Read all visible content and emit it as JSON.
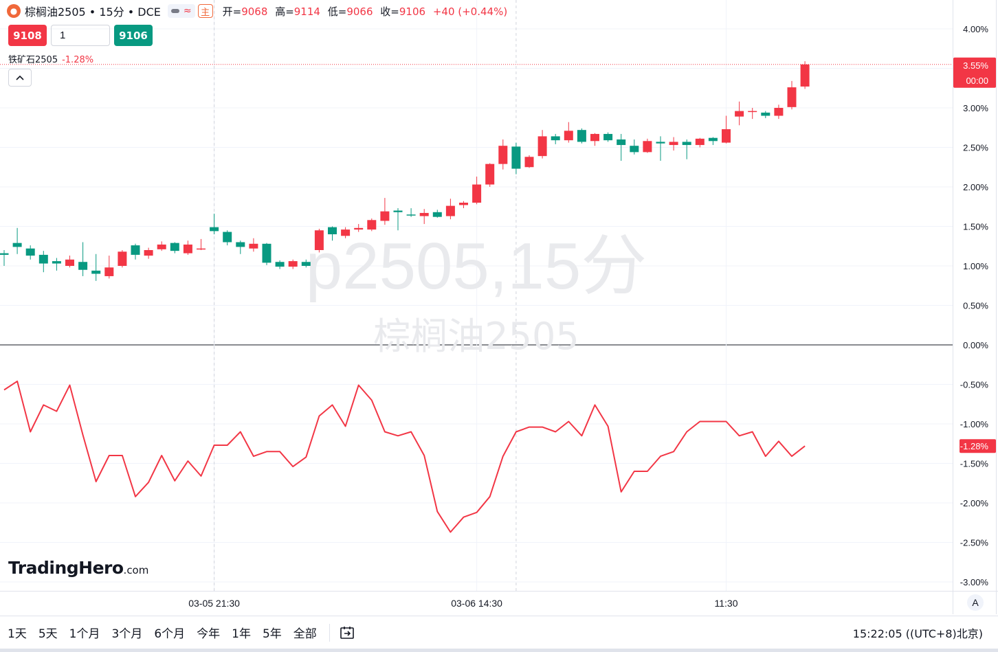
{
  "header": {
    "logo_icon": "oil-drop-icon",
    "symbol_title": "棕榈油2505 • 15分 • DCE",
    "wave_glyph": "≈",
    "main_badge": "主",
    "open_label": "开=",
    "open": "9068",
    "high_label": "高=",
    "high": "9114",
    "low_label": "低=",
    "low": "9066",
    "close_label": "收=",
    "close": "9106",
    "change": "+40 (+0.44%)"
  },
  "trade": {
    "sell_price": "9108",
    "quantity": "1",
    "buy_price": "9106"
  },
  "compare": {
    "symbol": "铁矿石2505",
    "change": "-1.28%"
  },
  "watermark": {
    "line1": "p2505,15分",
    "line2": "棕榈油2505"
  },
  "brand": {
    "name": "TradingHero",
    "suffix": ".com"
  },
  "axis_button": "A",
  "bottom_bar": {
    "ranges": [
      "1天",
      "5天",
      "1个月",
      "3个月",
      "6个月",
      "今年",
      "1年",
      "5年",
      "全部"
    ],
    "calendar_icon": "calendar-goto-icon",
    "time": "15:22:05 ((UTC+8)北京)"
  },
  "colors": {
    "up": "#f23645",
    "down": "#089981",
    "compare_line": "#f23645",
    "grid": "#f0f3fa"
  },
  "chart_data": {
    "type": "candlestick",
    "y_unit": "%",
    "ylim": [
      -3.1,
      4.2
    ],
    "y_ticks": [
      "4.00%",
      "3.50%",
      "3.00%",
      "2.50%",
      "2.00%",
      "1.50%",
      "1.00%",
      "0.50%",
      "0.00%",
      "-0.50%",
      "-1.00%",
      "-1.50%",
      "-2.00%",
      "-2.50%",
      "-3.00%"
    ],
    "y_tick_values": [
      4.0,
      3.5,
      3.0,
      2.5,
      2.0,
      1.5,
      1.0,
      0.5,
      0.0,
      -0.5,
      -1.0,
      -1.5,
      -2.0,
      -2.5,
      -3.0
    ],
    "x_ticks": [
      {
        "index": 16,
        "label": "03-05 21:30"
      },
      {
        "index": 36,
        "label": "03-06 14:30"
      },
      {
        "index": 55,
        "label": "11:30"
      }
    ],
    "session_breaks": [
      16,
      39
    ],
    "last_price_label": "3.55%",
    "last_price_value": 3.55,
    "countdown_label": "00:00",
    "compare_last_label": "-1.28%",
    "compare_last_value": -1.28,
    "grid": true,
    "series": [
      {
        "name": "棕榈油2505",
        "candles": [
          [
            1.16,
            1.14,
            1.2,
            1.0
          ],
          [
            1.29,
            1.24,
            1.48,
            1.15
          ],
          [
            1.22,
            1.13,
            1.26,
            1.08
          ],
          [
            1.14,
            1.03,
            1.19,
            0.92
          ],
          [
            1.06,
            1.03,
            1.1,
            0.94
          ],
          [
            1.0,
            1.08,
            1.13,
            0.98
          ],
          [
            1.05,
            0.95,
            1.3,
            0.87
          ],
          [
            0.94,
            0.9,
            1.15,
            0.81
          ],
          [
            0.87,
            0.98,
            1.13,
            0.84
          ],
          [
            1.0,
            1.18,
            1.2,
            0.98
          ],
          [
            1.26,
            1.14,
            1.28,
            1.08
          ],
          [
            1.13,
            1.2,
            1.23,
            1.09
          ],
          [
            1.21,
            1.27,
            1.31,
            1.19
          ],
          [
            1.29,
            1.19,
            1.3,
            1.16
          ],
          [
            1.16,
            1.27,
            1.32,
            1.14
          ],
          [
            1.22,
            1.22,
            1.34,
            1.2
          ],
          [
            1.49,
            1.44,
            1.66,
            1.4
          ],
          [
            1.43,
            1.3,
            1.45,
            1.26
          ],
          [
            1.3,
            1.24,
            1.32,
            1.15
          ],
          [
            1.22,
            1.28,
            1.35,
            1.18
          ],
          [
            1.28,
            1.04,
            1.29,
            1.01
          ],
          [
            1.05,
            0.99,
            1.07,
            0.96
          ],
          [
            0.99,
            1.06,
            1.08,
            0.96
          ],
          [
            1.05,
            1.0,
            1.08,
            0.98
          ],
          [
            1.2,
            1.45,
            1.47,
            1.17
          ],
          [
            1.49,
            1.4,
            1.5,
            1.32
          ],
          [
            1.38,
            1.46,
            1.49,
            1.35
          ],
          [
            1.46,
            1.48,
            1.53,
            1.43
          ],
          [
            1.46,
            1.58,
            1.6,
            1.44
          ],
          [
            1.57,
            1.69,
            1.86,
            1.52
          ],
          [
            1.7,
            1.68,
            1.73,
            1.45
          ],
          [
            1.65,
            1.64,
            1.73,
            1.62
          ],
          [
            1.63,
            1.67,
            1.72,
            1.53
          ],
          [
            1.68,
            1.62,
            1.71,
            1.61
          ],
          [
            1.63,
            1.76,
            1.85,
            1.59
          ],
          [
            1.77,
            1.8,
            1.82,
            1.73
          ],
          [
            1.8,
            2.03,
            2.13,
            1.78
          ],
          [
            2.03,
            2.29,
            2.3,
            2.0
          ],
          [
            2.29,
            2.52,
            2.6,
            2.22
          ],
          [
            2.51,
            2.23,
            2.56,
            2.16
          ],
          [
            2.25,
            2.38,
            2.4,
            2.24
          ],
          [
            2.39,
            2.64,
            2.72,
            2.36
          ],
          [
            2.64,
            2.59,
            2.67,
            2.54
          ],
          [
            2.59,
            2.71,
            2.82,
            2.56
          ],
          [
            2.72,
            2.57,
            2.74,
            2.55
          ],
          [
            2.58,
            2.67,
            2.68,
            2.52
          ],
          [
            2.67,
            2.59,
            2.69,
            2.57
          ],
          [
            2.6,
            2.53,
            2.67,
            2.33
          ],
          [
            2.52,
            2.44,
            2.6,
            2.41
          ],
          [
            2.44,
            2.58,
            2.61,
            2.43
          ],
          [
            2.57,
            2.55,
            2.64,
            2.33
          ],
          [
            2.53,
            2.57,
            2.63,
            2.46
          ],
          [
            2.57,
            2.53,
            2.6,
            2.35
          ],
          [
            2.53,
            2.61,
            2.62,
            2.5
          ],
          [
            2.62,
            2.58,
            2.63,
            2.53
          ],
          [
            2.56,
            2.73,
            2.9,
            2.55
          ],
          [
            2.89,
            2.96,
            3.08,
            2.78
          ],
          [
            2.96,
            2.96,
            3.0,
            2.86
          ],
          [
            2.94,
            2.9,
            2.96,
            2.87
          ],
          [
            2.9,
            3.0,
            3.04,
            2.86
          ],
          [
            3.01,
            3.26,
            3.34,
            2.98
          ],
          [
            3.27,
            3.55,
            3.59,
            3.24
          ]
        ]
      },
      {
        "name": "铁矿石2505",
        "values": [
          -0.57,
          -0.46,
          -1.1,
          -0.76,
          -0.84,
          -0.51,
          -1.14,
          -1.73,
          -1.4,
          -1.4,
          -1.92,
          -1.74,
          -1.4,
          -1.72,
          -1.47,
          -1.66,
          -1.27,
          -1.27,
          -1.1,
          -1.41,
          -1.35,
          -1.35,
          -1.54,
          -1.42,
          -0.9,
          -0.76,
          -1.03,
          -0.51,
          -0.7,
          -1.1,
          -1.15,
          -1.1,
          -1.4,
          -2.11,
          -2.37,
          -2.18,
          -2.12,
          -1.92,
          -1.41,
          -1.1,
          -1.04,
          -1.04,
          -1.1,
          -0.97,
          -1.15,
          -0.76,
          -1.03,
          -1.86,
          -1.6,
          -1.6,
          -1.41,
          -1.35,
          -1.1,
          -0.97,
          -0.97,
          -0.97,
          -1.15,
          -1.1,
          -1.41,
          -1.22,
          -1.41,
          -1.28
        ]
      }
    ]
  }
}
